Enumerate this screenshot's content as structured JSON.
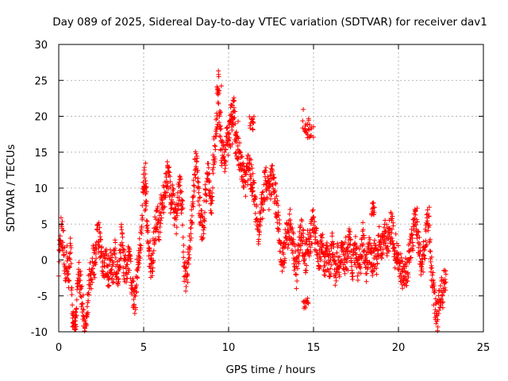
{
  "chart_data": {
    "type": "scatter",
    "title": "Day 089 of 2025, Sidereal Day-to-day VTEC variation (SDTVAR) for receiver dav1",
    "xlabel": "GPS time / hours",
    "ylabel": "SDTVAR / TECUs",
    "xlim": [
      0,
      25
    ],
    "ylim": [
      -10,
      30
    ],
    "xticks": [
      0,
      5,
      10,
      15,
      20,
      25
    ],
    "yticks": [
      -10,
      -5,
      0,
      5,
      10,
      15,
      20,
      25,
      30
    ],
    "xtick_labels": [
      "0",
      "5",
      "10",
      "15",
      "20",
      "25"
    ],
    "ytick_labels": [
      "-10",
      "-5",
      "0",
      "5",
      "10",
      "15",
      "20",
      "25",
      "30"
    ],
    "grid": true,
    "marker": "+",
    "marker_color": "#ff0000",
    "series": [
      {
        "name": "SDTVAR",
        "trace": [
          [
            0.0,
            0
          ],
          [
            0.1,
            4
          ],
          [
            0.2,
            3.5
          ],
          [
            0.3,
            2
          ],
          [
            0.4,
            -2
          ],
          [
            0.5,
            0
          ],
          [
            0.6,
            -3
          ],
          [
            0.7,
            1.5
          ],
          [
            0.8,
            -7
          ],
          [
            0.9,
            -10
          ],
          [
            1.0,
            -9
          ],
          [
            1.1,
            -5
          ],
          [
            1.2,
            -2
          ],
          [
            1.3,
            -4
          ],
          [
            1.4,
            -6
          ],
          [
            1.5,
            -8
          ],
          [
            1.6,
            -9
          ],
          [
            1.7,
            -6
          ],
          [
            1.8,
            -2
          ],
          [
            1.9,
            -3
          ],
          [
            2.0,
            0
          ],
          [
            2.1,
            -1
          ],
          [
            2.2,
            2
          ],
          [
            2.3,
            3.5
          ],
          [
            2.4,
            3
          ],
          [
            2.5,
            1
          ],
          [
            2.6,
            0
          ],
          [
            2.7,
            -1
          ],
          [
            2.8,
            0
          ],
          [
            2.9,
            -2
          ],
          [
            3.0,
            -1
          ],
          [
            3.1,
            0
          ],
          [
            3.2,
            -2
          ],
          [
            3.3,
            1
          ],
          [
            3.4,
            -1
          ],
          [
            3.5,
            -3
          ],
          [
            3.6,
            1
          ],
          [
            3.7,
            3
          ],
          [
            3.8,
            0
          ],
          [
            3.9,
            -1
          ],
          [
            4.0,
            -2
          ],
          [
            4.1,
            0
          ],
          [
            4.2,
            -1
          ],
          [
            4.3,
            -3
          ],
          [
            4.4,
            -5
          ],
          [
            4.5,
            -6
          ],
          [
            4.6,
            -2
          ],
          [
            4.7,
            0
          ],
          [
            4.8,
            2
          ],
          [
            4.9,
            5
          ],
          [
            5.0,
            12
          ],
          [
            5.1,
            8
          ],
          [
            5.2,
            5
          ],
          [
            5.3,
            2
          ],
          [
            5.4,
            0
          ],
          [
            5.5,
            -1
          ],
          [
            5.6,
            3
          ],
          [
            5.7,
            5
          ],
          [
            5.8,
            6
          ],
          [
            5.9,
            4
          ],
          [
            6.0,
            7
          ],
          [
            6.1,
            8
          ],
          [
            6.2,
            9
          ],
          [
            6.3,
            10
          ],
          [
            6.4,
            12
          ],
          [
            6.5,
            11
          ],
          [
            6.6,
            8
          ],
          [
            6.7,
            10
          ],
          [
            6.8,
            7
          ],
          [
            6.9,
            5
          ],
          [
            7.0,
            8
          ],
          [
            7.1,
            10
          ],
          [
            7.2,
            9
          ],
          [
            7.3,
            6
          ],
          [
            7.4,
            -2
          ],
          [
            7.5,
            -3
          ],
          [
            7.6,
            -1
          ],
          [
            7.7,
            2
          ],
          [
            7.8,
            5
          ],
          [
            7.9,
            8
          ],
          [
            8.0,
            13
          ],
          [
            8.1,
            14
          ],
          [
            8.2,
            10
          ],
          [
            8.3,
            7
          ],
          [
            8.4,
            5
          ],
          [
            8.5,
            4
          ],
          [
            8.6,
            8
          ],
          [
            8.7,
            10
          ],
          [
            8.8,
            12
          ],
          [
            8.9,
            9
          ],
          [
            9.0,
            7
          ],
          [
            9.1,
            14
          ],
          [
            9.2,
            16
          ],
          [
            9.3,
            20
          ],
          [
            9.4,
            25
          ],
          [
            9.5,
            18
          ],
          [
            9.6,
            15
          ],
          [
            9.7,
            16
          ],
          [
            9.8,
            14
          ],
          [
            9.9,
            17
          ],
          [
            10.0,
            16
          ],
          [
            10.1,
            19
          ],
          [
            10.2,
            20
          ],
          [
            10.3,
            21
          ],
          [
            10.4,
            18
          ],
          [
            10.5,
            16
          ],
          [
            10.6,
            15
          ],
          [
            10.7,
            14
          ],
          [
            10.8,
            13
          ],
          [
            10.9,
            12
          ],
          [
            11.0,
            11
          ],
          [
            11.1,
            12
          ],
          [
            11.2,
            13
          ],
          [
            11.3,
            12
          ],
          [
            11.4,
            11
          ],
          [
            11.5,
            9
          ],
          [
            11.6,
            7
          ],
          [
            11.7,
            5
          ],
          [
            11.8,
            4
          ],
          [
            11.9,
            6
          ],
          [
            12.0,
            8
          ],
          [
            12.1,
            10
          ],
          [
            12.2,
            11
          ],
          [
            12.3,
            10
          ],
          [
            12.4,
            9
          ],
          [
            12.5,
            11
          ],
          [
            12.6,
            12
          ],
          [
            12.7,
            10
          ],
          [
            12.8,
            8
          ],
          [
            12.9,
            6
          ],
          [
            13.0,
            4
          ],
          [
            13.1,
            1
          ],
          [
            13.2,
            0
          ],
          [
            13.3,
            2
          ],
          [
            13.4,
            4
          ],
          [
            13.5,
            3
          ],
          [
            13.6,
            5
          ],
          [
            13.7,
            4
          ],
          [
            13.8,
            2
          ],
          [
            13.9,
            0
          ],
          [
            14.0,
            -2
          ],
          [
            14.1,
            1
          ],
          [
            14.2,
            3
          ],
          [
            14.3,
            4
          ],
          [
            14.4,
            2
          ],
          [
            14.5,
            0
          ],
          [
            14.6,
            1
          ],
          [
            14.7,
            3
          ],
          [
            14.8,
            2
          ],
          [
            14.9,
            4
          ],
          [
            15.0,
            6
          ],
          [
            15.1,
            3
          ],
          [
            15.2,
            2
          ],
          [
            15.3,
            0
          ],
          [
            15.4,
            1
          ],
          [
            15.5,
            3
          ],
          [
            15.6,
            0
          ],
          [
            15.7,
            -1
          ],
          [
            15.8,
            1
          ],
          [
            15.9,
            0
          ],
          [
            16.0,
            -1
          ],
          [
            16.1,
            2
          ],
          [
            16.2,
            0
          ],
          [
            16.3,
            -2
          ],
          [
            16.4,
            1
          ],
          [
            16.5,
            -1
          ],
          [
            16.6,
            0
          ],
          [
            16.7,
            2
          ],
          [
            16.8,
            -1
          ],
          [
            16.9,
            1
          ],
          [
            17.0,
            0
          ],
          [
            17.1,
            3
          ],
          [
            17.2,
            1
          ],
          [
            17.3,
            -1
          ],
          [
            17.4,
            0
          ],
          [
            17.5,
            2
          ],
          [
            17.6,
            -1
          ],
          [
            17.7,
            1
          ],
          [
            17.8,
            0
          ],
          [
            17.9,
            3
          ],
          [
            18.0,
            1
          ],
          [
            18.1,
            -1
          ],
          [
            18.2,
            0
          ],
          [
            18.3,
            2
          ],
          [
            18.4,
            0
          ],
          [
            18.5,
            -1
          ],
          [
            18.6,
            1
          ],
          [
            18.7,
            0
          ],
          [
            18.8,
            2
          ],
          [
            18.9,
            3
          ],
          [
            19.0,
            1
          ],
          [
            19.1,
            2
          ],
          [
            19.2,
            4
          ],
          [
            19.3,
            3
          ],
          [
            19.4,
            2
          ],
          [
            19.5,
            4
          ],
          [
            19.6,
            5
          ],
          [
            19.7,
            3
          ],
          [
            19.8,
            1
          ],
          [
            19.9,
            2
          ],
          [
            20.0,
            0
          ],
          [
            20.1,
            -1
          ],
          [
            20.2,
            -2
          ],
          [
            20.3,
            -2
          ],
          [
            20.4,
            -1
          ],
          [
            20.5,
            -2
          ],
          [
            20.6,
            0
          ],
          [
            20.7,
            1
          ],
          [
            20.8,
            3
          ],
          [
            20.9,
            4
          ],
          [
            21.0,
            6
          ],
          [
            21.1,
            5
          ],
          [
            21.2,
            2
          ],
          [
            21.3,
            0
          ],
          [
            21.4,
            -1
          ],
          [
            21.5,
            1
          ],
          [
            21.6,
            3
          ],
          [
            21.7,
            5
          ],
          [
            21.8,
            6
          ],
          [
            21.9,
            0
          ],
          [
            22.0,
            -3
          ],
          [
            22.1,
            -5
          ],
          [
            22.2,
            -7
          ],
          [
            22.3,
            -8
          ],
          [
            22.4,
            -6
          ],
          [
            22.5,
            -4
          ],
          [
            22.6,
            -5
          ],
          [
            22.7,
            -3
          ],
          [
            22.8,
            -2
          ]
        ],
        "clusters": [
          [
            14.3,
            14.9,
            17,
            21
          ],
          [
            14.5,
            15.1,
            17,
            19
          ],
          [
            11.2,
            11.5,
            18,
            20
          ],
          [
            14.4,
            14.7,
            -7,
            -5
          ],
          [
            18.4,
            18.6,
            6,
            8
          ],
          [
            9.3,
            9.6,
            18,
            25
          ],
          [
            10.0,
            10.6,
            14,
            21
          ],
          [
            5.0,
            5.2,
            8,
            14
          ],
          [
            0.8,
            1.0,
            -10,
            -7
          ]
        ]
      }
    ]
  }
}
